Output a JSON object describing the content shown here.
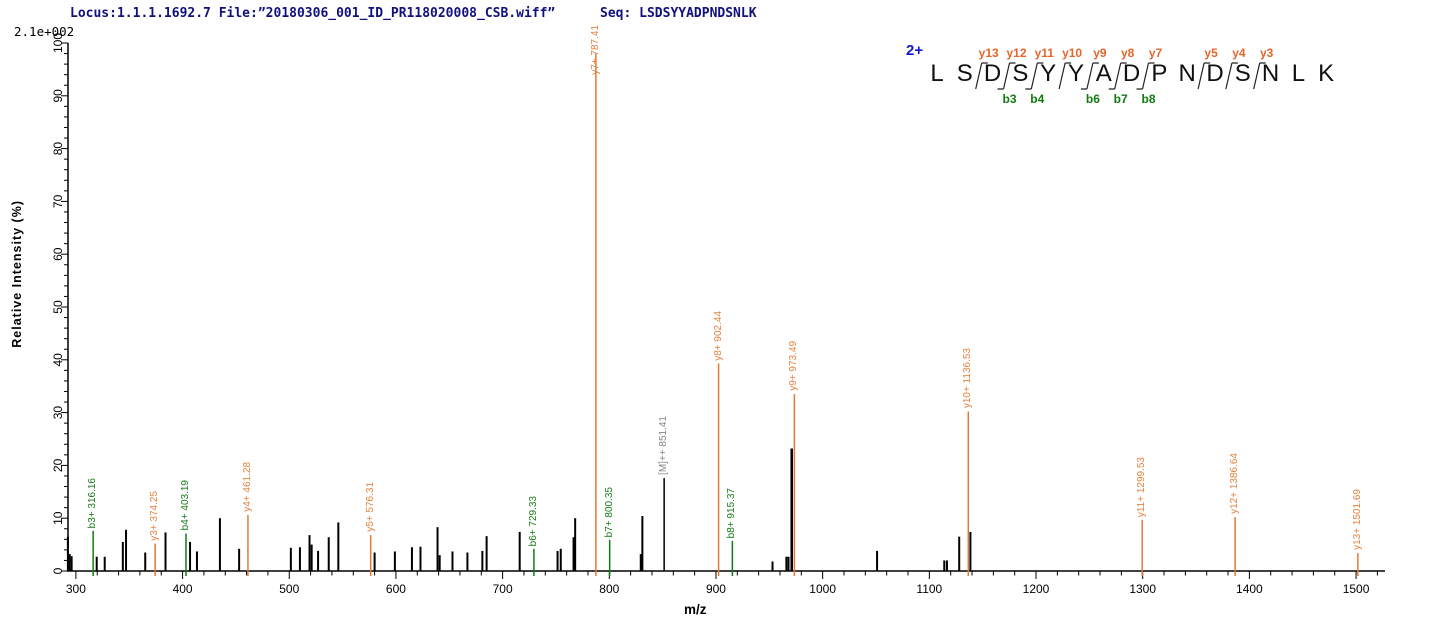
{
  "header": {
    "locus_file": "Locus:1.1.1.1692.7 File:”20180306_001_ID_PR118020008_CSB.wiff”",
    "seq_label": "Seq: LSDSYYADPNDSNLK"
  },
  "chart_data": {
    "type": "bar",
    "subtype": "tandem-ms-spectrum",
    "xlabel": "m/z",
    "ylabel": "Relative  Intensity  (%)",
    "max_intensity_label": "2.1e+002",
    "xlim": [
      292.6,
      1527
    ],
    "ylim": [
      0,
      100
    ],
    "x_major_ticks": [
      300,
      400,
      500,
      600,
      700,
      800,
      900,
      1000,
      1100,
      1200,
      1300,
      1400,
      1500
    ],
    "x_minor_step": 20,
    "y_major_ticks": [
      0,
      10,
      20,
      30,
      40,
      50,
      60,
      70,
      80,
      90,
      100
    ],
    "y_minor_step": 2,
    "grid": false,
    "peaks": [
      {
        "mz": 316.16,
        "intensity": 7.6,
        "type": "b",
        "label": "b3+ 316.16"
      },
      {
        "mz": 374.25,
        "intensity": 5.2,
        "type": "y",
        "label": "y3+ 374.25"
      },
      {
        "mz": 403.19,
        "intensity": 7.1,
        "type": "b",
        "label": "b4+ 403.19"
      },
      {
        "mz": 461.28,
        "intensity": 10.6,
        "type": "y",
        "label": "y4+ 461.28"
      },
      {
        "mz": 576.31,
        "intensity": 6.8,
        "type": "y",
        "label": "y5+ 576.31"
      },
      {
        "mz": 729.33,
        "intensity": 4.2,
        "type": "b",
        "label": "b6+ 729.33"
      },
      {
        "mz": 787.41,
        "intensity": 98.0,
        "type": "y",
        "label": "y7+ 787.41"
      },
      {
        "mz": 800.35,
        "intensity": 5.9,
        "type": "b",
        "label": "b7+ 800.35"
      },
      {
        "mz": 851.41,
        "intensity": 17.6,
        "type": "precursor",
        "label": "[M]++ 851.41"
      },
      {
        "mz": 902.44,
        "intensity": 39.3,
        "type": "y",
        "label": "y8+ 902.44"
      },
      {
        "mz": 915.37,
        "intensity": 5.7,
        "type": "b",
        "label": "b8+ 915.37"
      },
      {
        "mz": 973.49,
        "intensity": 33.5,
        "type": "y",
        "label": "y9+ 973.49"
      },
      {
        "mz": 1136.53,
        "intensity": 30.2,
        "type": "y",
        "label": "y10+ 1136.53"
      },
      {
        "mz": 1299.53,
        "intensity": 9.7,
        "type": "y",
        "label": "y11+ 1299.53"
      },
      {
        "mz": 1386.64,
        "intensity": 10.2,
        "type": "y",
        "label": "y12+ 1386.64"
      },
      {
        "mz": 1501.69,
        "intensity": 3.4,
        "type": "y",
        "label": "y13+ 1501.69"
      },
      {
        "mz": 292.5,
        "intensity": 6.5,
        "type": "unassigned"
      },
      {
        "mz": 294.2,
        "intensity": 3.2,
        "type": "unassigned"
      },
      {
        "mz": 296.0,
        "intensity": 2.8,
        "type": "unassigned"
      },
      {
        "mz": 319.5,
        "intensity": 2.7,
        "type": "unassigned"
      },
      {
        "mz": 327.0,
        "intensity": 2.7,
        "type": "unassigned"
      },
      {
        "mz": 344.0,
        "intensity": 5.5,
        "type": "unassigned"
      },
      {
        "mz": 347.0,
        "intensity": 7.8,
        "type": "unassigned"
      },
      {
        "mz": 365.0,
        "intensity": 3.5,
        "type": "unassigned"
      },
      {
        "mz": 384.0,
        "intensity": 7.3,
        "type": "unassigned"
      },
      {
        "mz": 407.0,
        "intensity": 5.5,
        "type": "unassigned"
      },
      {
        "mz": 413.5,
        "intensity": 3.7,
        "type": "unassigned"
      },
      {
        "mz": 435.0,
        "intensity": 10.0,
        "type": "unassigned"
      },
      {
        "mz": 453.0,
        "intensity": 4.2,
        "type": "unassigned"
      },
      {
        "mz": 501.5,
        "intensity": 4.4,
        "type": "unassigned"
      },
      {
        "mz": 510.0,
        "intensity": 4.5,
        "type": "unassigned"
      },
      {
        "mz": 519.0,
        "intensity": 6.8,
        "type": "unassigned"
      },
      {
        "mz": 521.0,
        "intensity": 5.0,
        "type": "unassigned"
      },
      {
        "mz": 527.0,
        "intensity": 3.8,
        "type": "unassigned"
      },
      {
        "mz": 537.0,
        "intensity": 6.4,
        "type": "unassigned"
      },
      {
        "mz": 546.0,
        "intensity": 9.2,
        "type": "unassigned"
      },
      {
        "mz": 580.0,
        "intensity": 3.5,
        "type": "unassigned"
      },
      {
        "mz": 599.0,
        "intensity": 3.7,
        "type": "unassigned"
      },
      {
        "mz": 615.0,
        "intensity": 4.5,
        "type": "unassigned"
      },
      {
        "mz": 623.0,
        "intensity": 4.6,
        "type": "unassigned"
      },
      {
        "mz": 639.0,
        "intensity": 8.3,
        "type": "unassigned"
      },
      {
        "mz": 641.0,
        "intensity": 3.0,
        "type": "unassigned"
      },
      {
        "mz": 653.0,
        "intensity": 3.7,
        "type": "unassigned"
      },
      {
        "mz": 667.0,
        "intensity": 3.5,
        "type": "unassigned"
      },
      {
        "mz": 681.0,
        "intensity": 3.8,
        "type": "unassigned"
      },
      {
        "mz": 685.0,
        "intensity": 6.6,
        "type": "unassigned"
      },
      {
        "mz": 716.0,
        "intensity": 7.4,
        "type": "unassigned"
      },
      {
        "mz": 751.5,
        "intensity": 3.8,
        "type": "unassigned"
      },
      {
        "mz": 754.5,
        "intensity": 4.2,
        "type": "unassigned"
      },
      {
        "mz": 766.5,
        "intensity": 6.4,
        "type": "unassigned"
      },
      {
        "mz": 768.0,
        "intensity": 10.0,
        "type": "unassigned"
      },
      {
        "mz": 829.5,
        "intensity": 3.2,
        "type": "unassigned"
      },
      {
        "mz": 831.0,
        "intensity": 10.4,
        "type": "unassigned"
      },
      {
        "mz": 953.0,
        "intensity": 1.8,
        "type": "unassigned"
      },
      {
        "mz": 966.0,
        "intensity": 2.7,
        "type": "unassigned"
      },
      {
        "mz": 968.0,
        "intensity": 2.7,
        "type": "unassigned"
      },
      {
        "mz": 971.0,
        "intensity": 23.2,
        "type": "unassigned",
        "w": 2.5
      },
      {
        "mz": 1051.0,
        "intensity": 3.8,
        "type": "unassigned"
      },
      {
        "mz": 1114.0,
        "intensity": 2.0,
        "type": "unassigned"
      },
      {
        "mz": 1116.5,
        "intensity": 2.0,
        "type": "unassigned"
      },
      {
        "mz": 1128.0,
        "intensity": 6.5,
        "type": "unassigned"
      },
      {
        "mz": 1138.5,
        "intensity": 7.4,
        "type": "unassigned"
      }
    ]
  },
  "sequence_panel": {
    "charge_label": "2+",
    "residues": [
      "L",
      "S",
      "D",
      "S",
      "Y",
      "Y",
      "A",
      "D",
      "P",
      "N",
      "D",
      "S",
      "N",
      "L",
      "K"
    ],
    "y_ions": [
      {
        "label": "y13",
        "after_residue": 2
      },
      {
        "label": "y12",
        "after_residue": 3
      },
      {
        "label": "y11",
        "after_residue": 4
      },
      {
        "label": "y10",
        "after_residue": 5
      },
      {
        "label": "y9",
        "after_residue": 6
      },
      {
        "label": "y8",
        "after_residue": 7
      },
      {
        "label": "y7",
        "after_residue": 8
      },
      {
        "label": "y5",
        "after_residue": 10
      },
      {
        "label": "y4",
        "after_residue": 11
      },
      {
        "label": "y3",
        "after_residue": 12
      }
    ],
    "b_ions": [
      {
        "label": "b3",
        "after_residue": 3
      },
      {
        "label": "b4",
        "after_residue": 4
      },
      {
        "label": "b6",
        "after_residue": 6
      },
      {
        "label": "b7",
        "after_residue": 7
      },
      {
        "label": "b8",
        "after_residue": 8
      }
    ]
  },
  "colors": {
    "y_ion": "#e07b36",
    "b_ion": "#157a15",
    "unassigned": "#000000",
    "precursor_peak": "#000000",
    "precursor_label": "#858585",
    "header_text": "#10107e",
    "charge_label": "#1616cc",
    "axis": "#000000"
  }
}
